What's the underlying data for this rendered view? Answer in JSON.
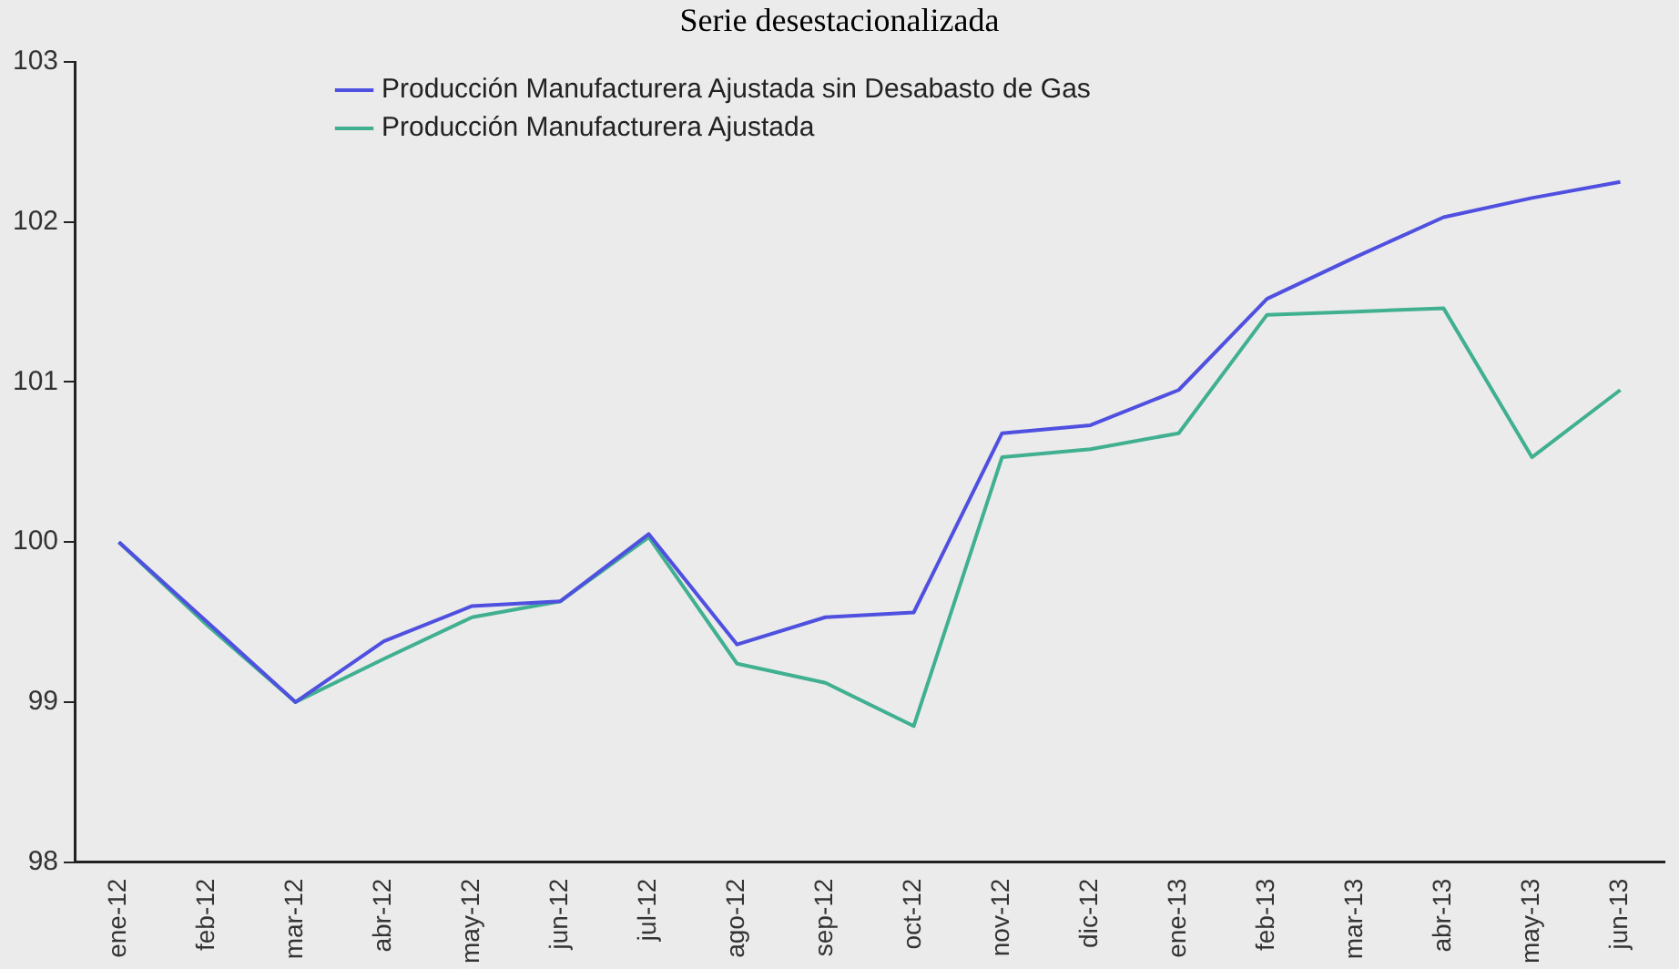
{
  "chart_data": {
    "type": "line",
    "title": "Serie desestacionalizada",
    "categories": [
      "ene-12",
      "feb-12",
      "mar-12",
      "abr-12",
      "may-12",
      "jun-12",
      "jul-12",
      "ago-12",
      "sep-12",
      "oct-12",
      "nov-12",
      "dic-12",
      "ene-13",
      "feb-13",
      "mar-13",
      "abr-13",
      "may-13",
      "jun-13"
    ],
    "series": [
      {
        "name": "Producción Manufacturera Ajustada sin Desabasto de Gas",
        "color": "#5050e0",
        "values": [
          100.0,
          99.5,
          99.0,
          99.38,
          99.6,
          99.63,
          100.05,
          99.36,
          99.53,
          99.56,
          100.68,
          100.73,
          100.95,
          101.52,
          101.78,
          102.03,
          102.15,
          102.25
        ]
      },
      {
        "name": "Producción Manufacturera Ajustada",
        "color": "#40b090",
        "values": [
          100.0,
          99.48,
          99.0,
          99.27,
          99.53,
          99.63,
          100.03,
          99.24,
          99.12,
          98.85,
          100.53,
          100.58,
          100.68,
          101.42,
          101.44,
          101.46,
          100.53,
          100.95
        ]
      }
    ],
    "ylim": [
      98,
      103
    ],
    "yticks": [
      98,
      99,
      100,
      101,
      102,
      103
    ],
    "grid": false,
    "legend": "top",
    "marker": "none",
    "line_style": "solid"
  }
}
